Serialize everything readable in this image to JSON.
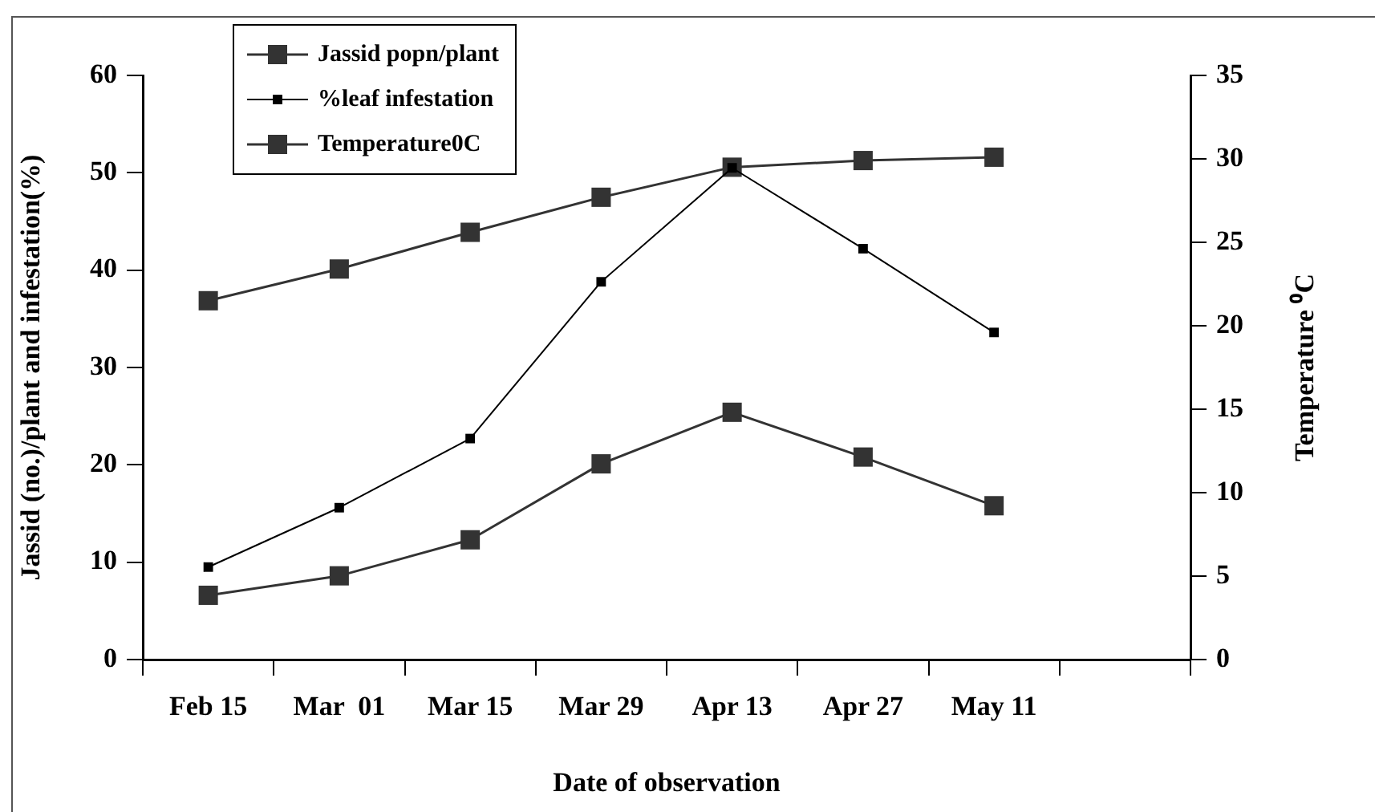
{
  "chart_data": {
    "type": "line",
    "xlabel": "Date of observation",
    "ylabel": "Jassid (no.)/plant and infestation(%)",
    "y2label": "Temperature ⁰C",
    "categories": [
      "Feb 15",
      "Mar  01",
      "Mar 15",
      "Mar 29",
      "Apr 13",
      "Apr 27",
      "May 11",
      null
    ],
    "series": [
      {
        "name": "Jassid popn/plant",
        "color": "#333333",
        "values": [
          6.6,
          8.6,
          12.3,
          20.1,
          25.4,
          20.8,
          15.8,
          null
        ]
      },
      {
        "name": "%leaf infestation",
        "color": "#000000",
        "values": [
          9.5,
          15.6,
          22.7,
          38.8,
          50.5,
          42.2,
          33.6,
          null
        ]
      },
      {
        "name": "Temperature0C",
        "color": "#333333",
        "axis": "y2",
        "values": [
          21.5,
          23.4,
          25.6,
          27.7,
          29.5,
          29.9,
          30.1,
          null
        ]
      }
    ],
    "ylim": [
      0,
      60
    ],
    "yticks": [
      0,
      10,
      20,
      30,
      40,
      50,
      60
    ],
    "y2lim": [
      0,
      35
    ],
    "y2ticks": [
      0,
      5,
      10,
      15,
      20,
      25,
      30,
      35
    ],
    "marker": "square",
    "grid": false,
    "legend": "top left"
  }
}
